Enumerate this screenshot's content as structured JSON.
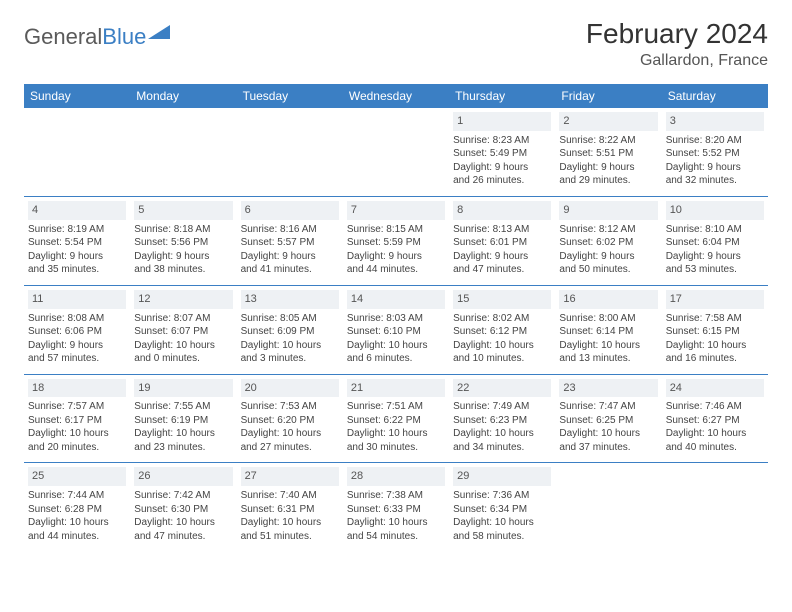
{
  "brand": {
    "part1": "General",
    "part2": "Blue"
  },
  "title": "February 2024",
  "location": "Gallardon, France",
  "colors": {
    "header_bg": "#3b7fc4",
    "header_text": "#ffffff",
    "row_border": "#3b7fc4",
    "daynum_bg": "#eef1f4",
    "body_text": "#444444"
  },
  "day_headers": [
    "Sunday",
    "Monday",
    "Tuesday",
    "Wednesday",
    "Thursday",
    "Friday",
    "Saturday"
  ],
  "weeks": [
    [
      {
        "n": "",
        "empty": true
      },
      {
        "n": "",
        "empty": true
      },
      {
        "n": "",
        "empty": true
      },
      {
        "n": "",
        "empty": true
      },
      {
        "n": "1",
        "sr": "Sunrise: 8:23 AM",
        "ss": "Sunset: 5:49 PM",
        "d1": "Daylight: 9 hours",
        "d2": "and 26 minutes."
      },
      {
        "n": "2",
        "sr": "Sunrise: 8:22 AM",
        "ss": "Sunset: 5:51 PM",
        "d1": "Daylight: 9 hours",
        "d2": "and 29 minutes."
      },
      {
        "n": "3",
        "sr": "Sunrise: 8:20 AM",
        "ss": "Sunset: 5:52 PM",
        "d1": "Daylight: 9 hours",
        "d2": "and 32 minutes."
      }
    ],
    [
      {
        "n": "4",
        "sr": "Sunrise: 8:19 AM",
        "ss": "Sunset: 5:54 PM",
        "d1": "Daylight: 9 hours",
        "d2": "and 35 minutes."
      },
      {
        "n": "5",
        "sr": "Sunrise: 8:18 AM",
        "ss": "Sunset: 5:56 PM",
        "d1": "Daylight: 9 hours",
        "d2": "and 38 minutes."
      },
      {
        "n": "6",
        "sr": "Sunrise: 8:16 AM",
        "ss": "Sunset: 5:57 PM",
        "d1": "Daylight: 9 hours",
        "d2": "and 41 minutes."
      },
      {
        "n": "7",
        "sr": "Sunrise: 8:15 AM",
        "ss": "Sunset: 5:59 PM",
        "d1": "Daylight: 9 hours",
        "d2": "and 44 minutes."
      },
      {
        "n": "8",
        "sr": "Sunrise: 8:13 AM",
        "ss": "Sunset: 6:01 PM",
        "d1": "Daylight: 9 hours",
        "d2": "and 47 minutes."
      },
      {
        "n": "9",
        "sr": "Sunrise: 8:12 AM",
        "ss": "Sunset: 6:02 PM",
        "d1": "Daylight: 9 hours",
        "d2": "and 50 minutes."
      },
      {
        "n": "10",
        "sr": "Sunrise: 8:10 AM",
        "ss": "Sunset: 6:04 PM",
        "d1": "Daylight: 9 hours",
        "d2": "and 53 minutes."
      }
    ],
    [
      {
        "n": "11",
        "sr": "Sunrise: 8:08 AM",
        "ss": "Sunset: 6:06 PM",
        "d1": "Daylight: 9 hours",
        "d2": "and 57 minutes."
      },
      {
        "n": "12",
        "sr": "Sunrise: 8:07 AM",
        "ss": "Sunset: 6:07 PM",
        "d1": "Daylight: 10 hours",
        "d2": "and 0 minutes."
      },
      {
        "n": "13",
        "sr": "Sunrise: 8:05 AM",
        "ss": "Sunset: 6:09 PM",
        "d1": "Daylight: 10 hours",
        "d2": "and 3 minutes."
      },
      {
        "n": "14",
        "sr": "Sunrise: 8:03 AM",
        "ss": "Sunset: 6:10 PM",
        "d1": "Daylight: 10 hours",
        "d2": "and 6 minutes."
      },
      {
        "n": "15",
        "sr": "Sunrise: 8:02 AM",
        "ss": "Sunset: 6:12 PM",
        "d1": "Daylight: 10 hours",
        "d2": "and 10 minutes."
      },
      {
        "n": "16",
        "sr": "Sunrise: 8:00 AM",
        "ss": "Sunset: 6:14 PM",
        "d1": "Daylight: 10 hours",
        "d2": "and 13 minutes."
      },
      {
        "n": "17",
        "sr": "Sunrise: 7:58 AM",
        "ss": "Sunset: 6:15 PM",
        "d1": "Daylight: 10 hours",
        "d2": "and 16 minutes."
      }
    ],
    [
      {
        "n": "18",
        "sr": "Sunrise: 7:57 AM",
        "ss": "Sunset: 6:17 PM",
        "d1": "Daylight: 10 hours",
        "d2": "and 20 minutes."
      },
      {
        "n": "19",
        "sr": "Sunrise: 7:55 AM",
        "ss": "Sunset: 6:19 PM",
        "d1": "Daylight: 10 hours",
        "d2": "and 23 minutes."
      },
      {
        "n": "20",
        "sr": "Sunrise: 7:53 AM",
        "ss": "Sunset: 6:20 PM",
        "d1": "Daylight: 10 hours",
        "d2": "and 27 minutes."
      },
      {
        "n": "21",
        "sr": "Sunrise: 7:51 AM",
        "ss": "Sunset: 6:22 PM",
        "d1": "Daylight: 10 hours",
        "d2": "and 30 minutes."
      },
      {
        "n": "22",
        "sr": "Sunrise: 7:49 AM",
        "ss": "Sunset: 6:23 PM",
        "d1": "Daylight: 10 hours",
        "d2": "and 34 minutes."
      },
      {
        "n": "23",
        "sr": "Sunrise: 7:47 AM",
        "ss": "Sunset: 6:25 PM",
        "d1": "Daylight: 10 hours",
        "d2": "and 37 minutes."
      },
      {
        "n": "24",
        "sr": "Sunrise: 7:46 AM",
        "ss": "Sunset: 6:27 PM",
        "d1": "Daylight: 10 hours",
        "d2": "and 40 minutes."
      }
    ],
    [
      {
        "n": "25",
        "sr": "Sunrise: 7:44 AM",
        "ss": "Sunset: 6:28 PM",
        "d1": "Daylight: 10 hours",
        "d2": "and 44 minutes."
      },
      {
        "n": "26",
        "sr": "Sunrise: 7:42 AM",
        "ss": "Sunset: 6:30 PM",
        "d1": "Daylight: 10 hours",
        "d2": "and 47 minutes."
      },
      {
        "n": "27",
        "sr": "Sunrise: 7:40 AM",
        "ss": "Sunset: 6:31 PM",
        "d1": "Daylight: 10 hours",
        "d2": "and 51 minutes."
      },
      {
        "n": "28",
        "sr": "Sunrise: 7:38 AM",
        "ss": "Sunset: 6:33 PM",
        "d1": "Daylight: 10 hours",
        "d2": "and 54 minutes."
      },
      {
        "n": "29",
        "sr": "Sunrise: 7:36 AM",
        "ss": "Sunset: 6:34 PM",
        "d1": "Daylight: 10 hours",
        "d2": "and 58 minutes."
      },
      {
        "n": "",
        "empty": true
      },
      {
        "n": "",
        "empty": true
      }
    ]
  ]
}
